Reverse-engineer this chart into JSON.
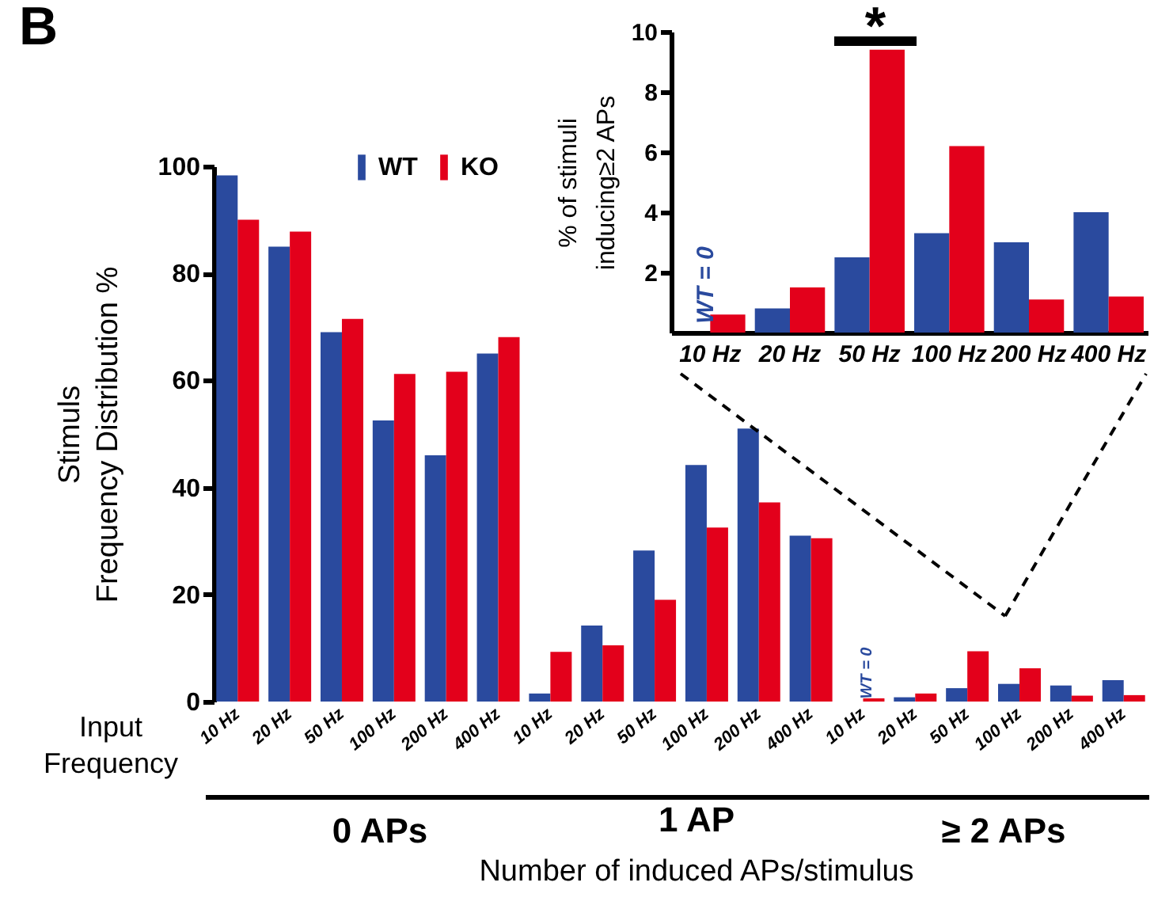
{
  "chart_data": [
    {
      "type": "bar",
      "xlabel": "Number of induced APs/stimulus",
      "ylabel": "Stimuls Frequency Distribution %",
      "categories": [
        "10 Hz",
        "20 Hz",
        "50 Hz",
        "100 Hz",
        "200 Hz",
        "400 Hz",
        "10 Hz",
        "20 Hz",
        "50 Hz",
        "100 Hz",
        "200 Hz",
        "400 Hz",
        "10 Hz",
        "20 Hz",
        "50 Hz",
        "100 Hz",
        "200 Hz",
        "400 Hz"
      ],
      "series": [
        {
          "name": "WT",
          "color": "#2a4a9e",
          "values": [
            98.3,
            85,
            69,
            52.5,
            46,
            65,
            1.5,
            14.2,
            28.2,
            44.2,
            51,
            31,
            0,
            0.8,
            2.5,
            3.3,
            3,
            4
          ]
        },
        {
          "name": "KO",
          "color": "#e3001b",
          "values": [
            90,
            87.8,
            71.5,
            61.2,
            61.6,
            68.1,
            9.3,
            10.5,
            19,
            32.5,
            37.2,
            30.5,
            0.6,
            1.5,
            9.4,
            6.2,
            1.1,
            1.2
          ]
        }
      ],
      "ylim": [
        0,
        100
      ],
      "yticks": [
        0,
        20,
        40,
        60,
        80,
        100
      ],
      "legend": "top",
      "annotations": [
        "B",
        "Input Frequency",
        "0 APs",
        "1 AP",
        "≥ 2 APs",
        "WT = 0"
      ]
    },
    {
      "type": "bar",
      "ylabel": "% of stimuli inducing≥2 APs",
      "categories": [
        "10 Hz",
        "20 Hz",
        "50 Hz",
        "100 Hz",
        "200 Hz",
        "400 Hz"
      ],
      "series": [
        {
          "color": "#2a4a9e",
          "values": [
            0,
            0.8,
            2.5,
            3.3,
            3,
            4
          ]
        },
        {
          "color": "#e3001b",
          "values": [
            0.6,
            1.5,
            9.4,
            6.2,
            1.1,
            1.2
          ]
        }
      ],
      "ylim": [
        0,
        10
      ],
      "yticks": [
        2,
        4,
        6,
        8,
        10
      ],
      "annotations": [
        "*",
        "WT = 0"
      ]
    }
  ]
}
